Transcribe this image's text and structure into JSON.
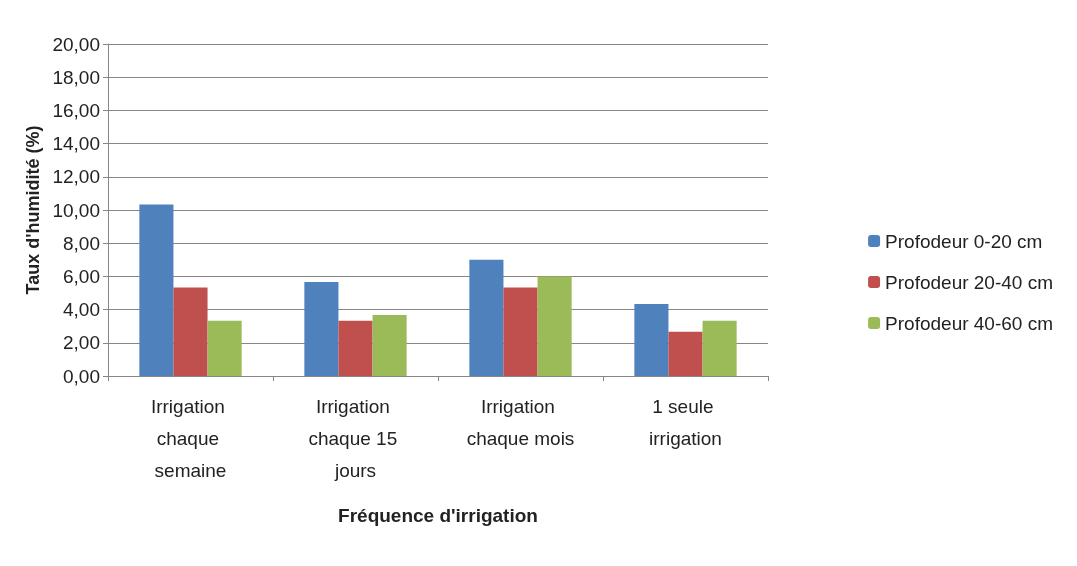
{
  "chart_data": {
    "type": "bar",
    "xlabel": "Fréquence d'irrigation",
    "ylabel": "Taux d'humidité (%)",
    "categories": [
      "Irrigation chaque semaine",
      "Irrigation chaque 15 jours",
      "Irrigation chaque mois",
      "1 seule irrigation"
    ],
    "series": [
      {
        "name": "Profodeur 0-20 cm",
        "color": "#4f81bd",
        "values": [
          10.33,
          5.67,
          7.0,
          4.33
        ]
      },
      {
        "name": "Profodeur 20-40 cm",
        "color": "#c0504d",
        "values": [
          5.33,
          3.33,
          5.33,
          2.67
        ]
      },
      {
        "name": "Profodeur 40-60 cm",
        "color": "#9bbb59",
        "values": [
          3.33,
          3.67,
          6.0,
          3.33
        ]
      }
    ],
    "ylim": [
      0,
      20
    ],
    "yticks": [
      {
        "value": 0,
        "label": "0,00"
      },
      {
        "value": 2,
        "label": "2,00"
      },
      {
        "value": 4,
        "label": "4,00"
      },
      {
        "value": 6,
        "label": "6,00"
      },
      {
        "value": 8,
        "label": "8,00"
      },
      {
        "value": 10,
        "label": "10,00"
      },
      {
        "value": 12,
        "label": "12,00"
      },
      {
        "value": 14,
        "label": "14,00"
      },
      {
        "value": 16,
        "label": "16,00"
      },
      {
        "value": 18,
        "label": "18,00"
      },
      {
        "value": 20,
        "label": "20,00"
      }
    ],
    "grid": "y",
    "legend": "right"
  }
}
